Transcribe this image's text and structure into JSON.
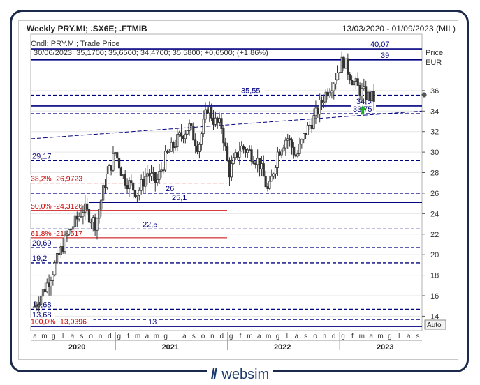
{
  "header": {
    "title": "Weekly PRY.MI; .SX6E; .FTMIB",
    "date_range": "13/03/2020 - 01/09/2023 (MIL)"
  },
  "legend": {
    "series_name": "Cndl; PRY.MI; Trade Price",
    "ohlc_line": "30/06/2023; 35,1700; 35,6500; 34,4700; 35,5800; +0,6500; (+1,86%)"
  },
  "axis": {
    "price_label": "Price",
    "currency_label": "EUR",
    "auto_label": "Auto"
  },
  "brand": {
    "name": "websim",
    "mark": "//"
  },
  "colors": {
    "candle": "#333333",
    "level_line": "#000080",
    "fib_line": "#cc0000",
    "arrow": "#22aa22"
  },
  "chart_data": {
    "type": "candlestick",
    "title": "Weekly PRY.MI; .SX6E; .FTMIB",
    "ylabel": "Price EUR",
    "ylim": [
      13,
      41.5
    ],
    "y_ticks": [
      14,
      16,
      18,
      20,
      22,
      24,
      26,
      28,
      30,
      32,
      34,
      36
    ],
    "x_month_labels": [
      "a",
      "m",
      "g",
      "l",
      "a",
      "s",
      "o",
      "n",
      "d",
      "g",
      "f",
      "m",
      "a",
      "m",
      "g",
      "l",
      "a",
      "s",
      "o",
      "n",
      "d",
      "g",
      "f",
      "m",
      "a",
      "m",
      "g",
      "l",
      "a",
      "s",
      "o",
      "n",
      "d",
      "g",
      "f",
      "m",
      "a",
      "m",
      "g",
      "l",
      "a",
      "s"
    ],
    "x_year_labels": [
      "2020",
      "2021",
      "2022",
      "2023"
    ],
    "close_path": [
      {
        "t": 0,
        "p": 15.0
      },
      {
        "t": 1.5,
        "p": 17.5
      },
      {
        "t": 3.5,
        "p": 22.0
      },
      {
        "t": 5.2,
        "p": 24.5
      },
      {
        "t": 6.5,
        "p": 23.0
      },
      {
        "t": 7.5,
        "p": 27.0
      },
      {
        "t": 8.6,
        "p": 30.0
      },
      {
        "t": 9.5,
        "p": 27.5
      },
      {
        "t": 11.0,
        "p": 26.0
      },
      {
        "t": 12.0,
        "p": 28.0
      },
      {
        "t": 13.0,
        "p": 27.0
      },
      {
        "t": 14.0,
        "p": 29.5
      },
      {
        "t": 15.5,
        "p": 31.5
      },
      {
        "t": 16.5,
        "p": 32.5
      },
      {
        "t": 17.5,
        "p": 30.5
      },
      {
        "t": 18.5,
        "p": 34.5
      },
      {
        "t": 19.2,
        "p": 33.0
      },
      {
        "t": 20.0,
        "p": 32.5
      },
      {
        "t": 20.8,
        "p": 28.0
      },
      {
        "t": 22.0,
        "p": 30.5
      },
      {
        "t": 23.0,
        "p": 30.0
      },
      {
        "t": 24.0,
        "p": 29.0
      },
      {
        "t": 25.0,
        "p": 26.0
      },
      {
        "t": 26.0,
        "p": 30.0
      },
      {
        "t": 27.0,
        "p": 31.5
      },
      {
        "t": 28.0,
        "p": 29.5
      },
      {
        "t": 29.0,
        "p": 32.0
      },
      {
        "t": 30.0,
        "p": 33.5
      },
      {
        "t": 31.0,
        "p": 35.5
      },
      {
        "t": 32.0,
        "p": 37.0
      },
      {
        "t": 33.0,
        "p": 39.0
      },
      {
        "t": 34.0,
        "p": 37.0
      },
      {
        "t": 34.8,
        "p": 36.0
      },
      {
        "t": 35.5,
        "p": 35.5
      },
      {
        "t": 36.3,
        "p": 35.2
      }
    ],
    "last_candle": {
      "date": "30/06/2023",
      "open": 35.17,
      "high": 35.65,
      "low": 34.47,
      "close": 35.58,
      "change": 0.65,
      "change_pct": 1.86
    },
    "horizontal_levels": [
      {
        "label": "40,07",
        "value": 40.07,
        "style": "solid"
      },
      {
        "label": "39",
        "value": 39.0,
        "style": "solid"
      },
      {
        "label": "35,55",
        "value": 35.55,
        "style": "dashed"
      },
      {
        "label": "34,5",
        "value": 34.5,
        "style": "solid"
      },
      {
        "label": "33,75",
        "value": 33.75,
        "style": "dashed"
      },
      {
        "label": "29,17",
        "value": 29.17,
        "style": "dashed"
      },
      {
        "label": "26",
        "value": 26.0,
        "style": "dashed"
      },
      {
        "label": "25,1",
        "value": 25.1,
        "style": "solid"
      },
      {
        "label": "22,5",
        "value": 22.5,
        "style": "dashed"
      },
      {
        "label": "20,69",
        "value": 20.69,
        "style": "dashed"
      },
      {
        "label": "19,2",
        "value": 19.2,
        "style": "dashed"
      },
      {
        "label": "14,68",
        "value": 14.68,
        "style": "dashed"
      },
      {
        "label": "13,68",
        "value": 13.68,
        "style": "dashed"
      },
      {
        "label": "13",
        "value": 13.0,
        "style": "solid"
      }
    ],
    "fibonacci_levels": [
      {
        "label": "38,2% -26,9723",
        "value": 26.9723
      },
      {
        "label": "50,0% -24,3126",
        "value": 24.3126
      },
      {
        "label": "61,8% -21,6517",
        "value": 21.6517
      },
      {
        "label": "100,0% -13,0396",
        "value": 13.0396
      }
    ],
    "trendline": {
      "start": {
        "t": 0,
        "p": 31.3
      },
      "end": {
        "t": 38.0,
        "p": 34.0
      }
    },
    "current_price_marker": 35.58
  }
}
